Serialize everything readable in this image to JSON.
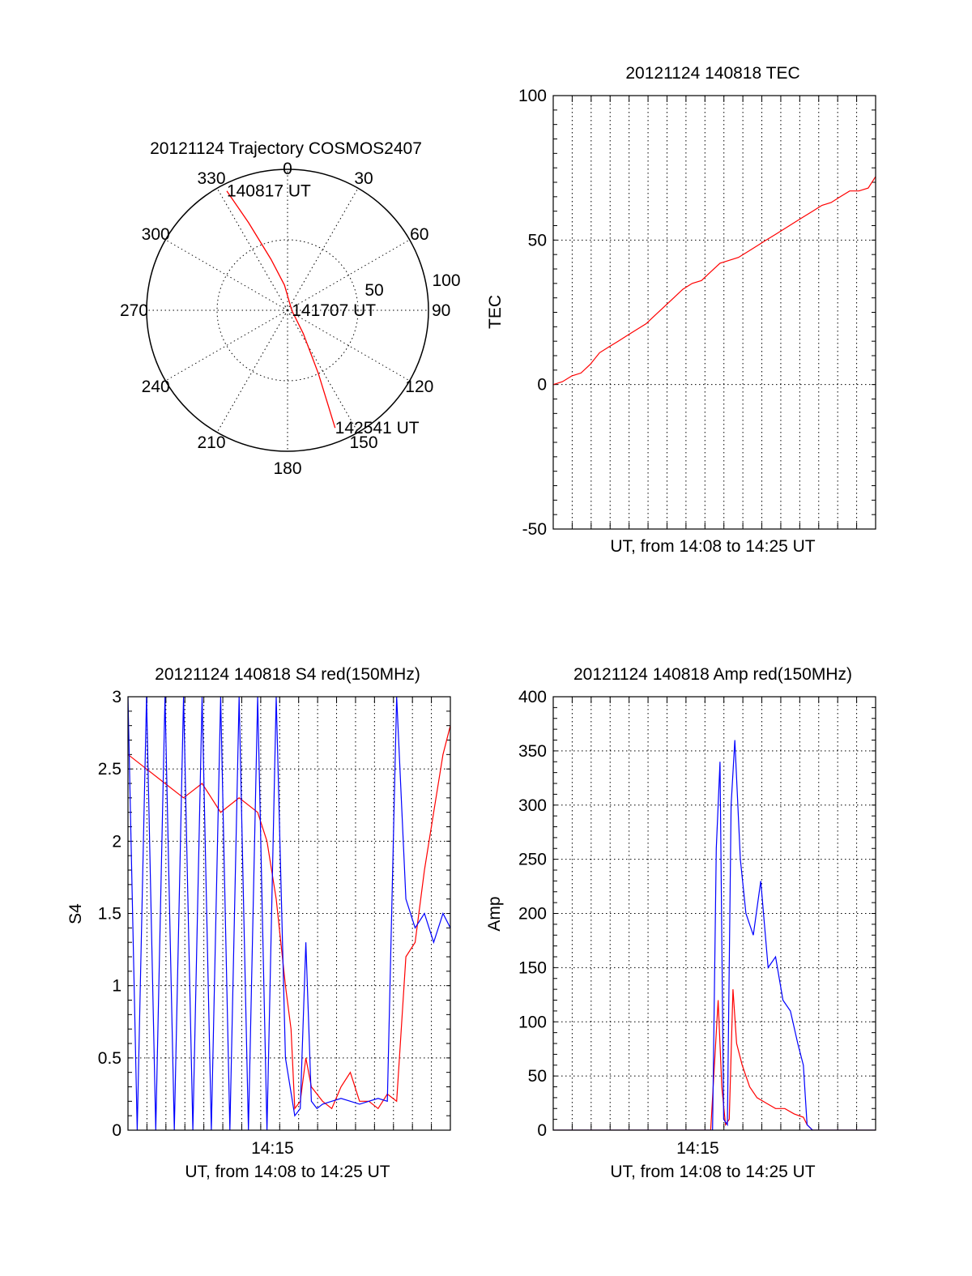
{
  "chart_data": [
    {
      "type": "polar",
      "title": "20121124 Trajectory COSMOS2407",
      "angle_labels": [
        "0",
        "30",
        "60",
        "90",
        "120",
        "150",
        "180",
        "210",
        "240",
        "270",
        "300",
        "330"
      ],
      "radial_labels": [
        "50",
        "100"
      ],
      "rlim": [
        0,
        100
      ],
      "grid": true,
      "series": [
        {
          "color": "#ff0000",
          "points": [
            {
              "az": 333,
              "r": 95
            },
            {
              "az": 336,
              "r": 68
            },
            {
              "az": 342,
              "r": 38
            },
            {
              "az": 353,
              "r": 18
            },
            {
              "az": 90,
              "r": 3
            },
            {
              "az": 146,
              "r": 20
            },
            {
              "az": 154,
              "r": 50
            },
            {
              "az": 157,
              "r": 75
            },
            {
              "az": 158,
              "r": 90
            }
          ]
        }
      ],
      "annotations": [
        {
          "text": "140817 UT",
          "az": 333,
          "r": 95
        },
        {
          "text": "141707 UT",
          "az": 90,
          "r": 3
        },
        {
          "text": "142541 UT",
          "az": 158,
          "r": 90
        }
      ]
    },
    {
      "type": "line",
      "title": "20121124 140818 TEC",
      "xlabel": "UT, from 14:08 to 14:25 UT",
      "ylabel": "TEC",
      "xlim": [
        0,
        17.4
      ],
      "ylim": [
        -50,
        100
      ],
      "yticks": [
        "-50",
        "0",
        "50",
        "100"
      ],
      "grid": true,
      "series": [
        {
          "color": "#ff0000",
          "x": [
            0,
            0.5,
            1,
            1.5,
            2,
            2.5,
            3,
            3.5,
            4,
            4.5,
            5,
            5.5,
            6,
            6.5,
            7,
            7.5,
            8,
            8.5,
            9,
            9.5,
            10,
            10.5,
            11,
            11.5,
            12,
            12.5,
            13,
            13.5,
            14,
            14.5,
            15,
            15.5,
            16,
            16.5,
            17,
            17.4
          ],
          "y": [
            0,
            1,
            3,
            4,
            7,
            11,
            13,
            15,
            17,
            19,
            21,
            24,
            27,
            30,
            33,
            35,
            36,
            39,
            42,
            43,
            44,
            46,
            48,
            50,
            52,
            54,
            56,
            58,
            60,
            62,
            63,
            65,
            67,
            67,
            68,
            72
          ]
        }
      ]
    },
    {
      "type": "line",
      "title": "20121124 140818 S4 red(150MHz)",
      "xlabel": "UT, from 14:08 to 14:25 UT",
      "ylabel": "S4",
      "xlim": [
        0,
        17.4
      ],
      "ylim": [
        0,
        3
      ],
      "yticks": [
        "0",
        "0.5",
        "1",
        "1.5",
        "2",
        "2.5",
        "3"
      ],
      "xticks": [
        {
          "x": 7.8,
          "label": "14:15"
        }
      ],
      "grid": true,
      "series": [
        {
          "color": "#ff0000",
          "x": [
            0,
            1,
            2,
            3,
            4,
            5,
            6,
            7,
            7.5,
            8,
            8.5,
            8.8,
            9,
            9.3,
            9.6,
            9.9,
            10.2,
            10.5,
            11,
            11.5,
            12,
            12.5,
            13,
            13.5,
            14,
            14.5,
            15,
            15.5,
            16,
            16.5,
            17,
            17.4
          ],
          "y": [
            2.6,
            2.5,
            2.4,
            2.3,
            2.4,
            2.2,
            2.3,
            2.2,
            2.0,
            1.6,
            1.0,
            0.7,
            0.15,
            0.2,
            0.5,
            0.3,
            0.25,
            0.2,
            0.15,
            0.3,
            0.4,
            0.2,
            0.2,
            0.15,
            0.25,
            0.2,
            1.2,
            1.3,
            1.8,
            2.2,
            2.6,
            2.8
          ]
        },
        {
          "color": "#0000ff",
          "x": [
            0,
            0.5,
            1,
            1.5,
            2,
            2.5,
            3,
            3.5,
            4,
            4.5,
            5,
            5.5,
            6,
            6.5,
            7,
            7.5,
            8,
            8.5,
            9,
            9.3,
            9.6,
            9.9,
            10.2,
            10.5,
            11,
            11.5,
            12,
            12.5,
            13,
            13.5,
            14,
            14.5,
            15,
            15.5,
            16,
            16.5,
            17,
            17.4
          ],
          "y": [
            3.0,
            0.0,
            3.0,
            0.0,
            3.0,
            0.0,
            3.0,
            0.0,
            3.0,
            0.0,
            3.0,
            0.0,
            3.0,
            0.0,
            3.0,
            0.0,
            3.0,
            0.5,
            0.1,
            0.15,
            1.3,
            0.2,
            0.15,
            0.18,
            0.2,
            0.22,
            0.2,
            0.18,
            0.2,
            0.22,
            0.2,
            3.0,
            1.6,
            1.4,
            1.5,
            1.3,
            1.5,
            1.4
          ]
        }
      ]
    },
    {
      "type": "line",
      "title": "20121124 140818 Amp red(150MHz)",
      "xlabel": "UT, from 14:08 to 14:25 UT",
      "ylabel": "Amp",
      "xlim": [
        0,
        17.4
      ],
      "ylim": [
        0,
        400
      ],
      "yticks": [
        "0",
        "50",
        "100",
        "150",
        "200",
        "250",
        "300",
        "350",
        "400"
      ],
      "xticks": [
        {
          "x": 7.8,
          "label": "14:15"
        }
      ],
      "grid": true,
      "series": [
        {
          "color": "#ff0000",
          "x": [
            0,
            8.5,
            8.7,
            8.9,
            9.1,
            9.3,
            9.5,
            9.7,
            9.9,
            10.2,
            10.6,
            11,
            11.5,
            12,
            12.5,
            13,
            13.5,
            13.7,
            14,
            17.4
          ],
          "y": [
            0,
            0,
            60,
            120,
            40,
            5,
            10,
            130,
            80,
            60,
            40,
            30,
            25,
            20,
            20,
            15,
            12,
            5,
            0,
            0
          ]
        },
        {
          "color": "#0000ff",
          "x": [
            0,
            8.6,
            8.8,
            9.0,
            9.2,
            9.4,
            9.6,
            9.8,
            10.1,
            10.4,
            10.8,
            11.2,
            11.6,
            12,
            12.4,
            12.8,
            13.2,
            13.5,
            13.7,
            14,
            17.4
          ],
          "y": [
            0,
            0,
            260,
            340,
            10,
            5,
            300,
            360,
            250,
            200,
            180,
            230,
            150,
            160,
            120,
            110,
            80,
            60,
            5,
            0,
            0
          ]
        }
      ]
    }
  ]
}
